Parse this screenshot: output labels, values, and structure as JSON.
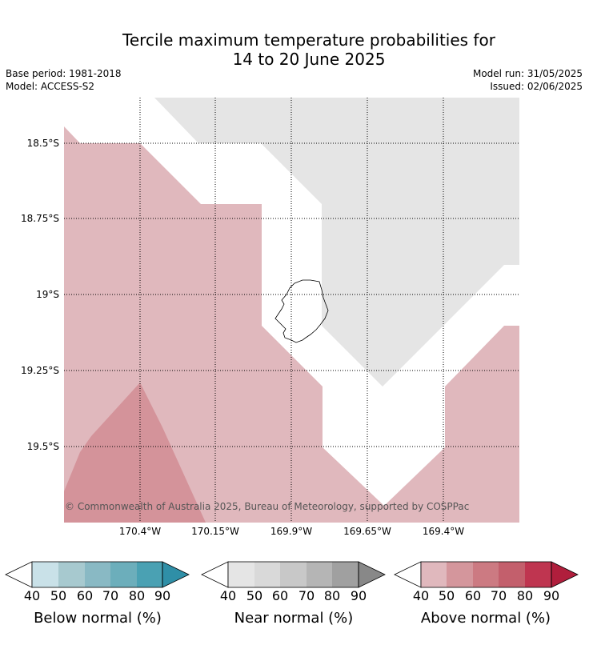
{
  "map": {
    "title_line1": "Tercile maximum temperature probabilities for",
    "title_line2": "14 to 20 June 2025",
    "base_period": "Base period: 1981-2018",
    "model": "Model: ACCESS-S2",
    "model_run": "Model run: 31/05/2025",
    "issued": "Issued: 02/06/2025",
    "copyright": "© Commonwealth of Australia 2025, Bureau of Meteorology, supported by COSPPac",
    "lat_labels": [
      "18.5°S",
      "18.75°S",
      "19°S",
      "19.25°S",
      "19.5°S"
    ],
    "lon_labels": [
      "170.4°W",
      "170.15°W",
      "169.9°W",
      "169.65°W",
      "169.4°W"
    ]
  },
  "legends": [
    {
      "title": "Below normal (%)",
      "ticks": [
        "40",
        "50",
        "60",
        "70",
        "80",
        "90"
      ],
      "colors": [
        "#ffffff",
        "#c9e1e8",
        "#a7c9cf",
        "#89b9c4",
        "#6caebb",
        "#4aa1b3",
        "#2f8fa7"
      ]
    },
    {
      "title": "Near normal (%)",
      "ticks": [
        "40",
        "50",
        "60",
        "70",
        "80",
        "90"
      ],
      "colors": [
        "#ffffff",
        "#e5e5e5",
        "#d9d9d9",
        "#c8c8c8",
        "#b5b5b5",
        "#a0a0a0",
        "#888888"
      ]
    },
    {
      "title": "Above normal (%)",
      "ticks": [
        "40",
        "50",
        "60",
        "70",
        "80",
        "90"
      ],
      "colors": [
        "#ffffff",
        "#e0b8bd",
        "#d4969c",
        "#cc7a82",
        "#c35f6c",
        "#bf3550",
        "#b01e3c"
      ]
    }
  ],
  "map_colors": {
    "above_40_50": "#e0b8bd",
    "above_50_60": "#d4939a",
    "near_40_50": "#e5e5e5"
  }
}
